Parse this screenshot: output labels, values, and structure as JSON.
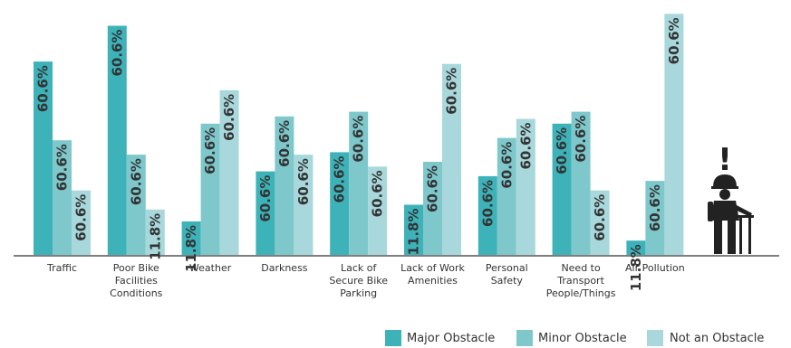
{
  "chart_data": {
    "type": "bar",
    "categories": [
      [
        "Traffic"
      ],
      [
        "Poor Bike",
        "Facilities",
        "Conditions"
      ],
      [
        "Weather"
      ],
      [
        "Darkness"
      ],
      [
        "Lack of",
        "Secure Bike",
        "Parking"
      ],
      [
        "Lack of Work",
        "Amenities"
      ],
      [
        "Personal",
        "Safety"
      ],
      [
        "Need to",
        "Transport",
        "People/Things"
      ],
      [
        "Air Pollution"
      ]
    ],
    "series": [
      {
        "name": "Major Obstacle",
        "color": "#3db3b9",
        "values": [
          81,
          96,
          14,
          35,
          43,
          21,
          33,
          55,
          6
        ],
        "labels": [
          "60.6%",
          "60.6%",
          "11.8%",
          "60.6%",
          "60.6%",
          "11.8%",
          "60.6%",
          "60.6%",
          "11.8%"
        ]
      },
      {
        "name": "Minor Obstacle",
        "color": "#7ec8cc",
        "values": [
          48,
          42,
          55,
          58,
          60,
          39,
          49,
          60,
          31
        ],
        "labels": [
          "60.6%",
          "60.6%",
          "60.6%",
          "60.6%",
          "60.6%",
          "60.6%",
          "60.6%",
          "60.6%",
          "60.6%"
        ]
      },
      {
        "name": "Not an Obstacle",
        "color": "#a8d8dc",
        "values": [
          27,
          19,
          69,
          42,
          37,
          80,
          57,
          27,
          101
        ],
        "labels": [
          "60.6%",
          "11.8%",
          "60.6%",
          "60.6%",
          "60.6%",
          "60.6%",
          "60.6%",
          "60.6%",
          "60.6%"
        ]
      }
    ],
    "ylim": [
      0,
      103
    ],
    "grid": false,
    "legend_position": "bottom-right"
  },
  "figure": {
    "icon": "cyclist-warning-icon",
    "icon_color": "#222222",
    "exclamation": "!"
  }
}
